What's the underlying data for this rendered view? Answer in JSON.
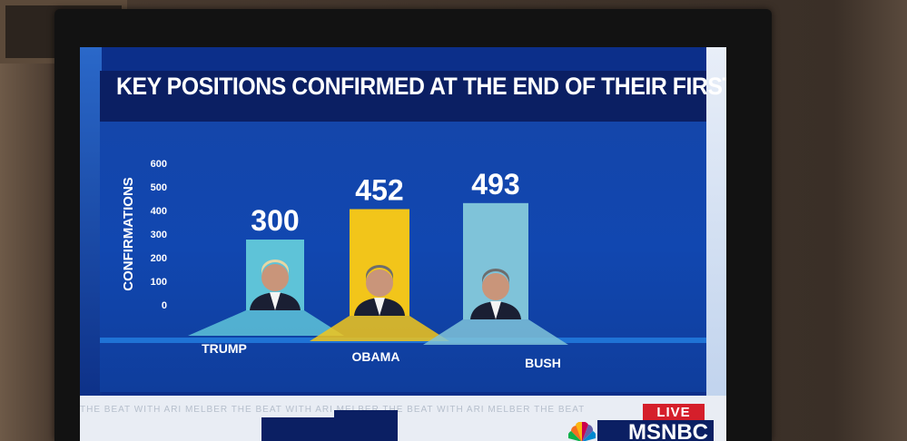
{
  "screen": {
    "title": "KEY POSITIONS CONFIRMED AT THE END OF THEIR FIRST YEAR",
    "live_label": "LIVE",
    "network": "MSNBC",
    "ticker_text": "THE BEAT WITH ARI MELBER   THE BEAT WITH ARI MELBER   THE BEAT WITH ARI MELBER   THE BEAT"
  },
  "colors": {
    "panel": "#1147b0",
    "title_bar": "#0b1f63",
    "trump": "#5ec3d8",
    "obama": "#f2c51a",
    "bush": "#7fc3d9",
    "live": "#d51f2b"
  },
  "chart_data": {
    "type": "bar",
    "title": "KEY POSITIONS CONFIRMED AT THE END OF THEIR FIRST YEAR",
    "ylabel": "CONFIRMATIONS",
    "xlabel": "",
    "ylim": [
      0,
      600
    ],
    "yticks": [
      "0",
      "100",
      "200",
      "300",
      "400",
      "500",
      "600"
    ],
    "categories": [
      "TRUMP",
      "OBAMA",
      "BUSH"
    ],
    "values": [
      300,
      452,
      493
    ],
    "value_labels": [
      "300",
      "452",
      "493"
    ],
    "colors": [
      "#5ec3d8",
      "#f2c51a",
      "#7fc3d9"
    ],
    "grid": false,
    "legend": "none"
  }
}
